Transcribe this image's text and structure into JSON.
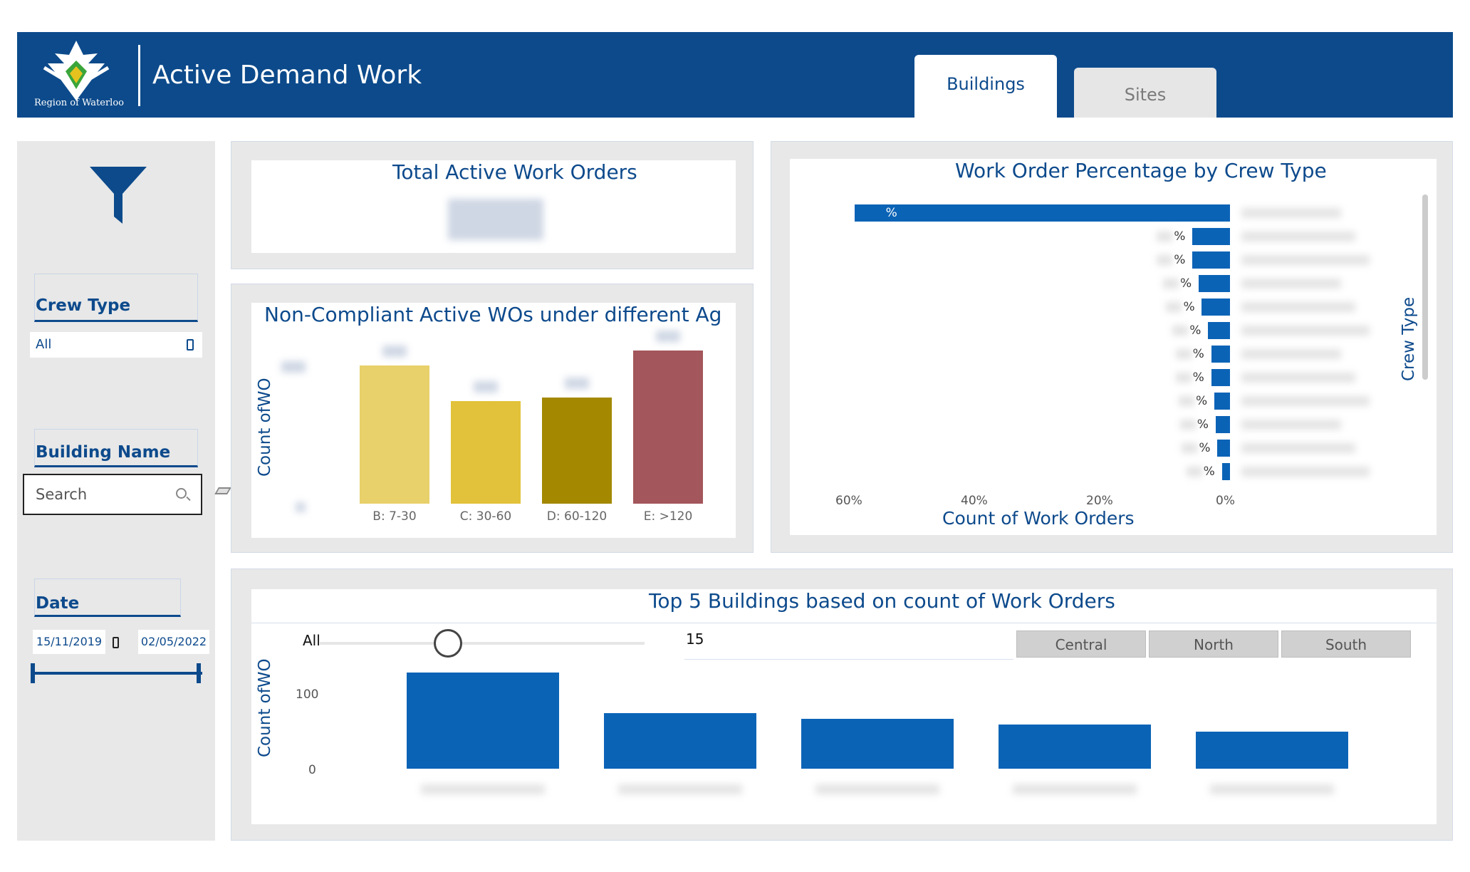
{
  "header": {
    "logo_text": "Region of Waterloo",
    "title": "Active Demand Work",
    "tabs": [
      {
        "label": "Buildings",
        "selected": true
      },
      {
        "label": "Sites",
        "selected": false
      }
    ],
    "colors": {
      "brand": "#0c4a8b",
      "accent": "#0b63b6"
    }
  },
  "filters": {
    "filter_icon": "funnel-icon",
    "crew_type": {
      "title": "Crew Type",
      "value": "All"
    },
    "building_name": {
      "title": "Building Name",
      "placeholder": "Search"
    },
    "date": {
      "title": "Date",
      "start": "15/11/2019",
      "end": "02/05/2022"
    }
  },
  "total_card": {
    "title": "Total Active Work Orders"
  },
  "age_chart": {
    "title": "Non-Compliant Active WOs under different Ag",
    "ylabel": "Count ofWO"
  },
  "crew_chart": {
    "title": "Work Order Percentage by Crew Type",
    "xlabel": "Count of Work Orders",
    "ylabel": "Crew Type",
    "x_ticks": [
      "60%",
      "40%",
      "20%",
      "0%"
    ],
    "percent_suffix": "%"
  },
  "top_buildings": {
    "title": "Top 5 Buildings based on count of Work Orders",
    "ylabel": "Count ofWO",
    "slider_min_label": "All",
    "slider_value": "15",
    "regions": [
      "Central",
      "North",
      "South"
    ],
    "y_ticks": [
      "100",
      "0"
    ]
  },
  "chart_data": [
    {
      "type": "bar",
      "title": "Non-Compliant Active WOs under different Ag",
      "ylabel": "Count ofWO",
      "categories": [
        "B: 7-30",
        "C: 30-60",
        "D: 60-120",
        "E: >120"
      ],
      "values": [
        100,
        74,
        77,
        111
      ],
      "colors": [
        "#e8d06a",
        "#e2c23a",
        "#a38800",
        "#a3565b"
      ]
    },
    {
      "type": "bar",
      "orientation": "horizontal",
      "title": "Work Order Percentage by Crew Type",
      "xlabel": "Count of Work Orders",
      "ylabel": "Crew Type",
      "x_ticks": [
        "60%",
        "40%",
        "20%",
        "0%"
      ],
      "values": [
        60,
        6,
        6,
        5,
        4.5,
        3.5,
        3,
        3,
        2.5,
        2.3,
        2,
        1.3
      ]
    },
    {
      "type": "bar",
      "title": "Top 5 Buildings based on count of Work Orders",
      "ylabel": "Count ofWO",
      "y_ticks": [
        100,
        0
      ],
      "values": [
        130,
        75,
        67,
        60,
        50
      ]
    }
  ]
}
